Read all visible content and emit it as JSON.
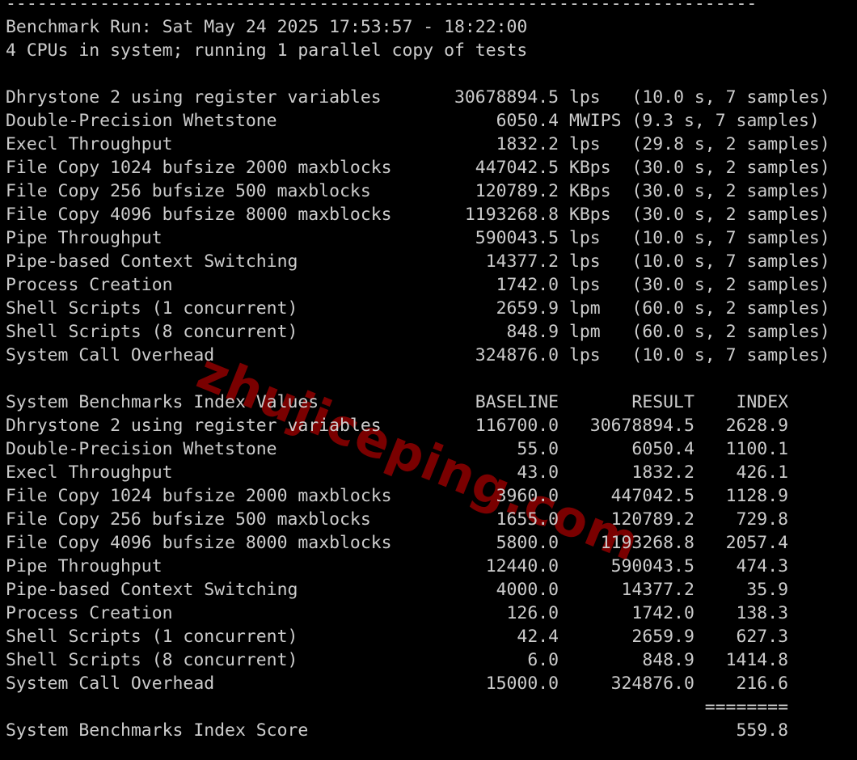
{
  "separator": "------------------------------------------------------------------------",
  "header": {
    "run_line": "Benchmark Run: Sat May 24 2025 17:53:57 - 18:22:00",
    "cpu_line": "4 CPUs in system; running 1 parallel copy of tests"
  },
  "results": [
    {
      "name": "Dhrystone 2 using register variables",
      "value": "30678894.5",
      "unit": "lps",
      "time": "10.0",
      "samples": "7"
    },
    {
      "name": "Double-Precision Whetstone",
      "value": "6050.4",
      "unit": "MWIPS",
      "time": "9.3",
      "samples": "7"
    },
    {
      "name": "Execl Throughput",
      "value": "1832.2",
      "unit": "lps",
      "time": "29.8",
      "samples": "2"
    },
    {
      "name": "File Copy 1024 bufsize 2000 maxblocks",
      "value": "447042.5",
      "unit": "KBps",
      "time": "30.0",
      "samples": "2"
    },
    {
      "name": "File Copy 256 bufsize 500 maxblocks",
      "value": "120789.2",
      "unit": "KBps",
      "time": "30.0",
      "samples": "2"
    },
    {
      "name": "File Copy 4096 bufsize 8000 maxblocks",
      "value": "1193268.8",
      "unit": "KBps",
      "time": "30.0",
      "samples": "2"
    },
    {
      "name": "Pipe Throughput",
      "value": "590043.5",
      "unit": "lps",
      "time": "10.0",
      "samples": "7"
    },
    {
      "name": "Pipe-based Context Switching",
      "value": "14377.2",
      "unit": "lps",
      "time": "10.0",
      "samples": "7"
    },
    {
      "name": "Process Creation",
      "value": "1742.0",
      "unit": "lps",
      "time": "30.0",
      "samples": "2"
    },
    {
      "name": "Shell Scripts (1 concurrent)",
      "value": "2659.9",
      "unit": "lpm",
      "time": "60.0",
      "samples": "2"
    },
    {
      "name": "Shell Scripts (8 concurrent)",
      "value": "848.9",
      "unit": "lpm",
      "time": "60.0",
      "samples": "2"
    },
    {
      "name": "System Call Overhead",
      "value": "324876.0",
      "unit": "lps",
      "time": "10.0",
      "samples": "7"
    }
  ],
  "index_table": {
    "title": "System Benchmarks Index Values",
    "columns": [
      "BASELINE",
      "RESULT",
      "INDEX"
    ],
    "rows": [
      {
        "name": "Dhrystone 2 using register variables",
        "baseline": "116700.0",
        "result": "30678894.5",
        "index": "2628.9"
      },
      {
        "name": "Double-Precision Whetstone",
        "baseline": "55.0",
        "result": "6050.4",
        "index": "1100.1"
      },
      {
        "name": "Execl Throughput",
        "baseline": "43.0",
        "result": "1832.2",
        "index": "426.1"
      },
      {
        "name": "File Copy 1024 bufsize 2000 maxblocks",
        "baseline": "3960.0",
        "result": "447042.5",
        "index": "1128.9"
      },
      {
        "name": "File Copy 256 bufsize 500 maxblocks",
        "baseline": "1655.0",
        "result": "120789.2",
        "index": "729.8"
      },
      {
        "name": "File Copy 4096 bufsize 8000 maxblocks",
        "baseline": "5800.0",
        "result": "1193268.8",
        "index": "2057.4"
      },
      {
        "name": "Pipe Throughput",
        "baseline": "12440.0",
        "result": "590043.5",
        "index": "474.3"
      },
      {
        "name": "Pipe-based Context Switching",
        "baseline": "4000.0",
        "result": "14377.2",
        "index": "35.9"
      },
      {
        "name": "Process Creation",
        "baseline": "126.0",
        "result": "1742.0",
        "index": "138.3"
      },
      {
        "name": "Shell Scripts (1 concurrent)",
        "baseline": "42.4",
        "result": "2659.9",
        "index": "627.3"
      },
      {
        "name": "Shell Scripts (8 concurrent)",
        "baseline": "6.0",
        "result": "848.9",
        "index": "1414.8"
      },
      {
        "name": "System Call Overhead",
        "baseline": "15000.0",
        "result": "324876.0",
        "index": "216.6"
      }
    ],
    "rule": "========",
    "score_label": "System Benchmarks Index Score",
    "score": "559.8"
  },
  "watermark": "zhujiceping.com",
  "colors": {
    "background": "#000000",
    "text": "#cccccc",
    "watermark": "#7a0000"
  }
}
